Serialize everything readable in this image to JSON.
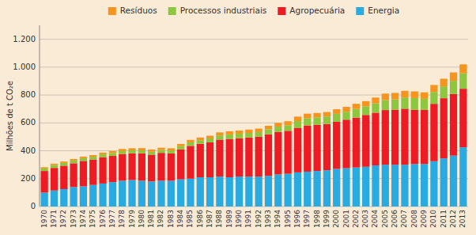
{
  "chart_data": {
    "type": "bar",
    "stacked": true,
    "grid": true,
    "legend": "top",
    "ylabel": "Milhões de t CO₂e",
    "categories": [
      "1970",
      "1971",
      "1972",
      "1973",
      "1974",
      "1975",
      "1976",
      "1977",
      "1978",
      "1979",
      "1980",
      "1981",
      "1982",
      "1983",
      "1984",
      "1985",
      "1986",
      "1987",
      "1988",
      "1989",
      "1990",
      "1991",
      "1992",
      "1993",
      "1994",
      "1995",
      "1996",
      "1997",
      "1998",
      "1999",
      "2000",
      "2001",
      "2002",
      "2003",
      "2004",
      "2005",
      "2006",
      "2007",
      "2008",
      "2009",
      "2010",
      "2011",
      "2012",
      "2013"
    ],
    "series": [
      {
        "name": "Energia",
        "color": "#29abe2",
        "values": [
          100,
          115,
          125,
          140,
          145,
          155,
          165,
          175,
          185,
          190,
          185,
          180,
          185,
          185,
          195,
          200,
          210,
          210,
          215,
          210,
          215,
          215,
          215,
          220,
          230,
          235,
          245,
          250,
          255,
          260,
          270,
          275,
          280,
          285,
          295,
          300,
          300,
          300,
          305,
          305,
          325,
          345,
          365,
          425
        ]
      },
      {
        "name": "Agropecuária",
        "color": "#ed1c24",
        "values": [
          155,
          162,
          168,
          170,
          182,
          182,
          188,
          188,
          192,
          192,
          197,
          192,
          200,
          196,
          215,
          235,
          240,
          250,
          265,
          275,
          275,
          280,
          285,
          298,
          305,
          308,
          320,
          332,
          332,
          332,
          338,
          348,
          358,
          372,
          378,
          392,
          393,
          402,
          388,
          388,
          412,
          432,
          442,
          420
        ]
      },
      {
        "name": "Processos industriais",
        "color": "#8dc63f",
        "values": [
          18,
          20,
          20,
          20,
          20,
          20,
          21,
          21,
          21,
          21,
          21,
          21,
          21,
          21,
          23,
          25,
          26,
          28,
          30,
          32,
          32,
          33,
          34,
          36,
          38,
          40,
          48,
          52,
          52,
          54,
          57,
          57,
          62,
          62,
          67,
          72,
          76,
          80,
          85,
          80,
          85,
          85,
          95,
          110
        ]
      },
      {
        "name": "Resíduos",
        "color": "#f7941d",
        "values": [
          9,
          10,
          10,
          11,
          11,
          12,
          13,
          14,
          15,
          15,
          16,
          16,
          16,
          16,
          16,
          18,
          19,
          20,
          22,
          23,
          23,
          24,
          25,
          25,
          27,
          29,
          32,
          32,
          32,
          32,
          33,
          35,
          37,
          37,
          42,
          46,
          46,
          48,
          48,
          46,
          50,
          55,
          60,
          65
        ]
      }
    ],
    "ylim": [
      0,
      1300
    ],
    "yticks": [
      0,
      200,
      400,
      600,
      800,
      {
        "value": 1000,
        "label": "1.000"
      },
      {
        "value": 1200,
        "label": "1.200"
      }
    ]
  }
}
